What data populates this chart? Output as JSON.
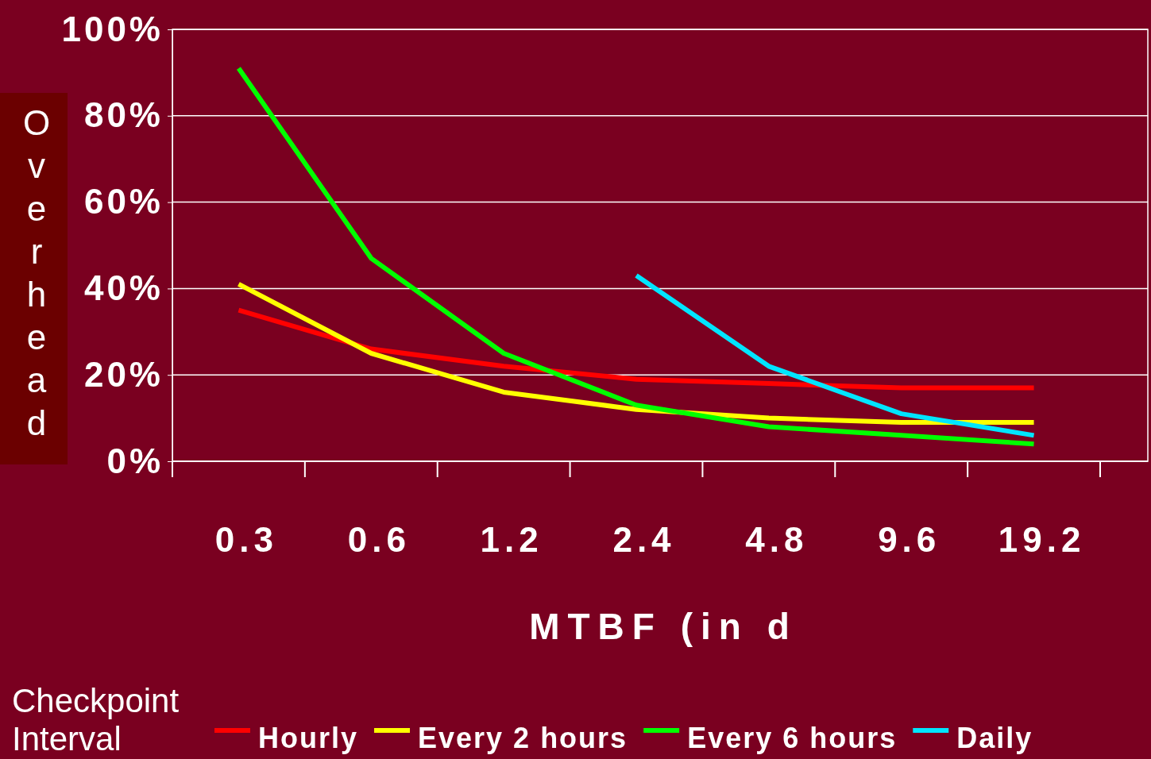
{
  "chart_data": {
    "type": "line",
    "xlabel": "MTBF (in d",
    "ylabel": "Overhead",
    "legend_title": "Checkpoint Interval",
    "categories": [
      "0.3",
      "0.6",
      "1.2",
      "2.4",
      "4.8",
      "9.6",
      "19.2"
    ],
    "ylim": [
      0,
      100
    ],
    "yticks": [
      {
        "value": 0,
        "label": "0%"
      },
      {
        "value": 20,
        "label": "20%"
      },
      {
        "value": 40,
        "label": "40%"
      },
      {
        "value": 60,
        "label": "60%"
      },
      {
        "value": 80,
        "label": "80%"
      },
      {
        "value": 100,
        "label": "100%"
      }
    ],
    "grid": "y",
    "legend": "bottom",
    "marker": "none",
    "line_style": "solid",
    "series": [
      {
        "name": "Hourly",
        "color": "#ff0000",
        "values": [
          35,
          26,
          22,
          19,
          18,
          17,
          17
        ]
      },
      {
        "name": "Every 2 hours",
        "color": "#ffff00",
        "values": [
          41,
          25,
          16,
          12,
          10,
          9,
          9
        ]
      },
      {
        "name": "Every 6 hours",
        "color": "#00ff00",
        "values": [
          91,
          47,
          25,
          13,
          8,
          6,
          4
        ]
      },
      {
        "name": "Daily",
        "color": "#00e5ff",
        "values": [
          null,
          null,
          null,
          43,
          22,
          11,
          6
        ]
      }
    ]
  }
}
